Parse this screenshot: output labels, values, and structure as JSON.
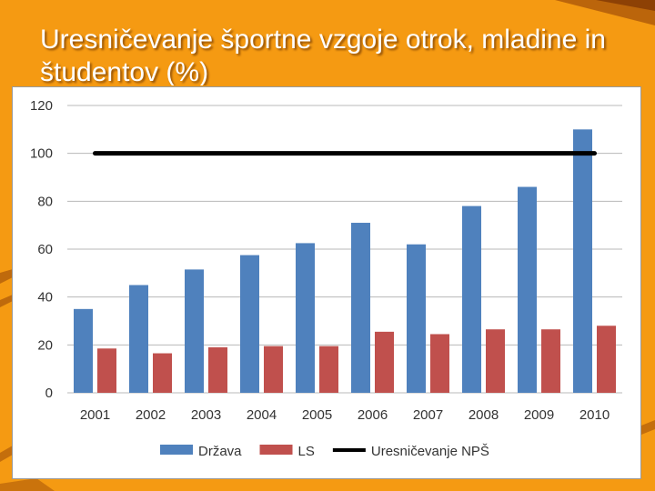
{
  "slide": {
    "title": "Uresničevanje športne vzgoje otrok, mladine in študentov (%)"
  },
  "colors": {
    "background": "#f59a12",
    "drzava": "#4f81bd",
    "ls": "#c0504d",
    "target_line": "#000000"
  },
  "chart_data": {
    "type": "bar",
    "title": "",
    "xlabel": "",
    "ylabel": "",
    "categories": [
      "2001",
      "2002",
      "2003",
      "2004",
      "2005",
      "2006",
      "2007",
      "2008",
      "2009",
      "2010"
    ],
    "ylim": [
      0,
      120
    ],
    "yticks": [
      "0",
      "20",
      "40",
      "60",
      "80",
      "100",
      "120"
    ],
    "grid": true,
    "legend_position": "bottom",
    "series": [
      {
        "name": "Država",
        "type": "bar",
        "color": "#4f81bd",
        "values": [
          35,
          45,
          51.5,
          57.5,
          62.5,
          71,
          62,
          78,
          86,
          110
        ]
      },
      {
        "name": "LS",
        "type": "bar",
        "color": "#c0504d",
        "values": [
          18.5,
          16.5,
          19,
          19.5,
          19.5,
          25.5,
          24.5,
          26.5,
          26.5,
          28
        ]
      },
      {
        "name": "Uresničevanje NPŠ",
        "type": "line",
        "color": "#000000",
        "values": [
          100,
          100,
          100,
          100,
          100,
          100,
          100,
          100,
          100,
          100
        ]
      }
    ]
  }
}
